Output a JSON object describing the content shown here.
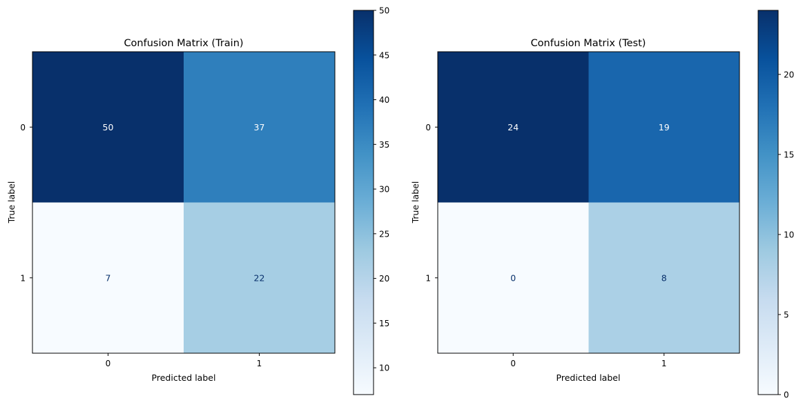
{
  "chart_data": [
    {
      "type": "heatmap",
      "title": "Confusion Matrix (Train)",
      "xlabel": "Predicted label",
      "ylabel": "True label",
      "x_categories": [
        "0",
        "1"
      ],
      "y_categories": [
        "0",
        "1"
      ],
      "values": [
        [
          50,
          37
        ],
        [
          7,
          22
        ]
      ],
      "colormap": "Blues",
      "colorbar": {
        "min": 7,
        "max": 50,
        "ticks": [
          10,
          15,
          20,
          25,
          30,
          35,
          40,
          45,
          50
        ]
      },
      "text_colors": {
        "light": "#ffffff",
        "dark": "#08306b"
      }
    },
    {
      "type": "heatmap",
      "title": "Confusion Matrix (Test)",
      "xlabel": "Predicted label",
      "ylabel": "True label",
      "x_categories": [
        "0",
        "1"
      ],
      "y_categories": [
        "0",
        "1"
      ],
      "values": [
        [
          24,
          19
        ],
        [
          0,
          8
        ]
      ],
      "colormap": "Blues",
      "colorbar": {
        "min": 0,
        "max": 24,
        "ticks": [
          0,
          5,
          10,
          15,
          20
        ]
      },
      "text_colors": {
        "light": "#ffffff",
        "dark": "#08306b"
      }
    }
  ]
}
